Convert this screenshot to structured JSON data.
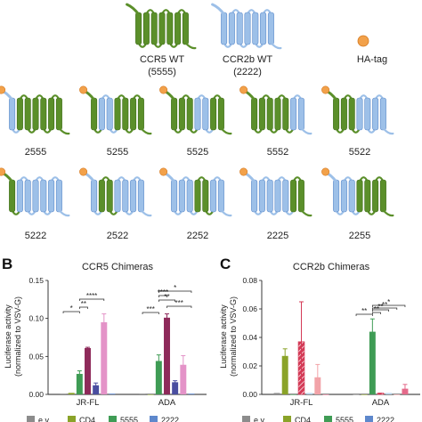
{
  "colors": {
    "ccr5_green": "#5b8f2a",
    "ccr5_green_dark": "#3f6e19",
    "ccr2b_blue": "#9dc0e8",
    "ccr2b_blue_dark": "#5e8ccb",
    "ha_tag_orange": "#f2a14a",
    "empty_vector": "#8c8c8c",
    "cd4": "#8aa329",
    "wt5555": "#3f9c55",
    "wt2222": "#5e88cc",
    "c2555": "#8e2a5a",
    "c5255": "#b81d66",
    "c5525": "#4a4ea0",
    "c5552": "#e493c8",
    "c5522": "#8a7ab8",
    "c5222": "#f2a3a8",
    "c2522": "#d43a56",
    "c2252": "#b9d6ee",
    "c2225": "#2a4e9a",
    "c2255": "#e46a8a"
  },
  "panel_a": {
    "wt": [
      {
        "name": "CCR5 WT",
        "code": "(5555)",
        "domains": "5555"
      },
      {
        "name": "CCR2b WT",
        "code": "(2222)",
        "domains": "2222"
      }
    ],
    "legend_label": "HA-tag",
    "row1": [
      "2555",
      "5255",
      "5525",
      "5552",
      "5522"
    ],
    "row2": [
      "5222",
      "2522",
      "2252",
      "2225",
      "2255"
    ]
  },
  "panel_b": {
    "letter": "B",
    "title": "CCR5 Chimeras",
    "ylabel": "Luciferase activity\n(normalized to VSV-G)"
  },
  "panel_c": {
    "letter": "C",
    "title": "CCR2b Chimeras",
    "ylabel": "Luciferase activity\n(normalized to VSV-G)"
  },
  "legend_entries": [
    "e.v.",
    "CD4",
    "5555",
    "2222"
  ],
  "chart_data": [
    {
      "type": "bar",
      "title": "CCR5 Chimeras",
      "ylabel": "Luciferase activity (normalized to VSV-G)",
      "ylim": [
        0,
        0.15
      ],
      "yticks": [
        "0.00",
        "0.05",
        "0.10",
        "0.15"
      ],
      "categories": [
        "JR-FL",
        "ADA"
      ],
      "series": [
        {
          "name": "e.v.",
          "values": [
            0.001,
            0.001
          ],
          "errors": [
            0.0,
            0.0
          ]
        },
        {
          "name": "CD4",
          "values": [
            0.002,
            0.0
          ],
          "errors": [
            0.0,
            0.0
          ]
        },
        {
          "name": "5555",
          "values": [
            0.027,
            0.044
          ],
          "errors": [
            0.004,
            0.008
          ]
        },
        {
          "values": [
            0.061,
            0.101
          ],
          "errors": [
            0.001,
            0.005
          ]
        },
        {
          "values": [
            0.012,
            0.016
          ],
          "errors": [
            0.003,
            0.002
          ]
        },
        {
          "values": [
            0.095,
            0.039
          ],
          "errors": [
            0.011,
            0.012
          ]
        },
        {
          "values": [
            0.001,
            0.001
          ],
          "errors": [
            0.0,
            0.0
          ]
        }
      ],
      "significance": [
        {
          "label": "*"
        },
        {
          "label": "**"
        },
        {
          "label": "****"
        },
        {
          "label": "***"
        },
        {
          "label": "****"
        },
        {
          "label": "*"
        },
        {
          "label": "**"
        },
        {
          "label": "***"
        }
      ]
    },
    {
      "type": "bar",
      "title": "CCR2b Chimeras",
      "ylabel": "Luciferase activity (normalized to VSV-G)",
      "ylim": [
        0,
        0.08
      ],
      "yticks": [
        "0.00",
        "0.02",
        "0.04",
        "0.06",
        "0.08"
      ],
      "categories": [
        "JR-FL",
        "ADA"
      ],
      "series": [
        {
          "name": "e.v.",
          "values": [
            0.001,
            0.0
          ],
          "errors": [
            0.0,
            0.0
          ]
        },
        {
          "name": "CD4",
          "values": [
            0.027,
            0.0
          ],
          "errors": [
            0.005,
            0.0
          ]
        },
        {
          "name": "5555",
          "values": [
            0.0,
            0.044
          ],
          "errors": [
            0.0,
            0.009
          ]
        },
        {
          "values": [
            0.037,
            0.001
          ],
          "errors": [
            0.028,
            0.0
          ]
        },
        {
          "values": [
            0.001,
            0.001
          ],
          "errors": [
            0.0,
            0.0
          ]
        },
        {
          "values": [
            0.012,
            0.0
          ],
          "errors": [
            0.009,
            0.0
          ]
        },
        {
          "values": [
            0.0,
            0.004
          ],
          "errors": [
            0.0,
            0.003
          ]
        }
      ],
      "significance": [
        {
          "label": "**"
        },
        {
          "label": "**"
        },
        {
          "label": "**"
        },
        {
          "label": "**"
        },
        {
          "label": "*"
        }
      ]
    }
  ]
}
